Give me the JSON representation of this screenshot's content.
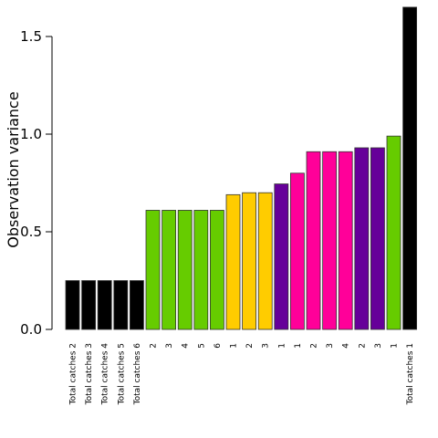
{
  "chart_data": {
    "type": "bar",
    "title": "",
    "xlabel": "",
    "ylabel": "Observation variance",
    "ylim": [
      0,
      1.65
    ],
    "yticks": [
      {
        "value": 0.0,
        "label": "0.0"
      },
      {
        "value": 0.5,
        "label": "0.5"
      },
      {
        "value": 1.0,
        "label": "1.0"
      },
      {
        "value": 1.5,
        "label": "1.5"
      }
    ],
    "grid": false,
    "legend": "none",
    "categories": [
      "Total catches 2",
      "Total catches 3",
      "Total catches 4",
      "Total catches 5",
      "Total catches 6",
      "2",
      "3",
      "4",
      "5",
      "6",
      "1",
      "2",
      "3",
      "1",
      "1",
      "2",
      "3",
      "4",
      "2",
      "3",
      "1",
      "Total catches 1"
    ],
    "values": [
      0.25,
      0.25,
      0.25,
      0.25,
      0.25,
      0.61,
      0.61,
      0.61,
      0.61,
      0.61,
      0.69,
      0.7,
      0.7,
      0.745,
      0.8,
      0.91,
      0.91,
      0.91,
      0.93,
      0.93,
      0.99,
      1.65
    ],
    "colors": [
      "#000000",
      "#000000",
      "#000000",
      "#000000",
      "#000000",
      "#66cc00",
      "#66cc00",
      "#66cc00",
      "#66cc00",
      "#66cc00",
      "#ffcc00",
      "#ffcc00",
      "#ffcc00",
      "#660099",
      "#ff0099",
      "#ff0099",
      "#ff0099",
      "#ff0099",
      "#660099",
      "#660099",
      "#66cc00",
      "#000000"
    ]
  }
}
